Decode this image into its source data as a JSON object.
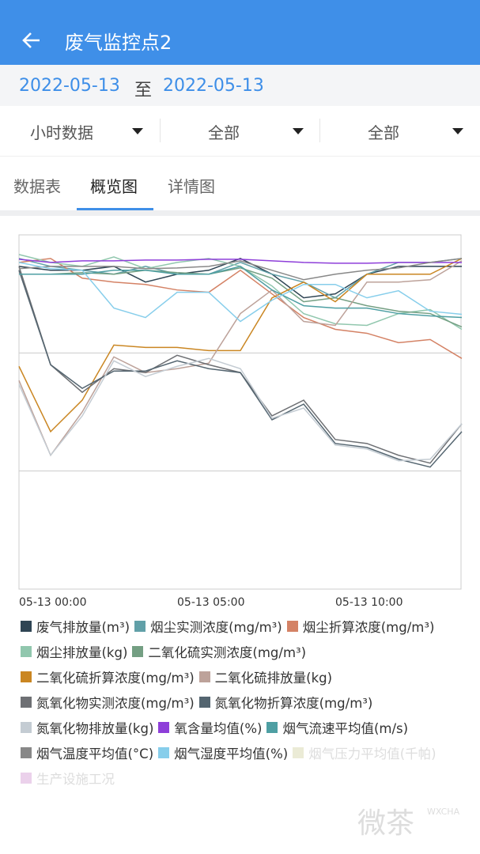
{
  "header": {
    "title": "废气监控点2"
  },
  "date_range": {
    "start": "2022-05-13",
    "separator": "至",
    "end": "2022-05-13"
  },
  "filters": [
    "小时数据",
    "全部",
    "全部"
  ],
  "tabs": [
    "数据表",
    "概览图",
    "详情图"
  ],
  "active_tab": 1,
  "watermark": {
    "text": "微茶",
    "sub": "WXCHA"
  },
  "chart_data": {
    "type": "line",
    "categories": [
      "05-13 00:00",
      null,
      null,
      null,
      null,
      "05-13 05:00",
      null,
      null,
      null,
      null,
      "05-13 10:00",
      null,
      null,
      null,
      null
    ],
    "ylim": [
      0,
      450
    ],
    "yticks": [
      150,
      300
    ],
    "grid": true,
    "series": [
      {
        "name": "废气排放量(m³)",
        "color": "#2f4554",
        "values": [
          410,
          405,
          405,
          410,
          390,
          400,
          405,
          420,
          400,
          370,
          375,
          400,
          410,
          410,
          410
        ]
      },
      {
        "name": "烟尘实测浓度(mg/m³)",
        "color": "#61a0a8",
        "values": [
          420,
          410,
          405,
          400,
          410,
          400,
          400,
          415,
          400,
          390,
          370,
          400,
          415,
          415,
          420
        ]
      },
      {
        "name": "烟尘折算浓度(mg/m³)",
        "color": "#d48265",
        "values": [
          415,
          420,
          395,
          390,
          387,
          380,
          377,
          405,
          375,
          345,
          330,
          325,
          313,
          317,
          293
        ]
      },
      {
        "name": "烟尘排放量(kg)",
        "color": "#91c7ae",
        "values": [
          425,
          415,
          410,
          422,
          407,
          415,
          420,
          410,
          385,
          350,
          337,
          335,
          350,
          355,
          330
        ]
      },
      {
        "name": "二氧化硫实测浓度(mg/m³)",
        "color": "#749f83",
        "values": [
          400,
          400,
          402,
          400,
          405,
          402,
          400,
          408,
          395,
          365,
          370,
          360,
          353,
          350,
          333
        ]
      },
      {
        "name": "二氧化硫折算浓度(mg/m³)",
        "color": "#ca8622",
        "values": [
          283,
          200,
          240,
          310,
          307,
          307,
          303,
          303,
          370,
          390,
          365,
          400,
          400,
          400,
          420
        ]
      },
      {
        "name": "二氧化硫排放量(kg)",
        "color": "#bda29a",
        "values": [
          265,
          170,
          225,
          295,
          275,
          280,
          287,
          350,
          380,
          340,
          335,
          390,
          390,
          393,
          417
        ]
      },
      {
        "name": "氮氧化物实测浓度(mg/m³)",
        "color": "#6e7074",
        "values": [
          410,
          285,
          250,
          280,
          275,
          297,
          285,
          275,
          220,
          240,
          190,
          185,
          170,
          160,
          210
        ]
      },
      {
        "name": "氮氧化物折算浓度(mg/m³)",
        "color": "#546570",
        "values": [
          405,
          285,
          255,
          277,
          277,
          290,
          280,
          275,
          215,
          235,
          185,
          180,
          165,
          155,
          200
        ]
      },
      {
        "name": "氮氧化物排放量(kg)",
        "color": "#c4ccd3",
        "values": [
          260,
          170,
          220,
          290,
          270,
          283,
          293,
          280,
          217,
          230,
          183,
          178,
          163,
          165,
          210
        ]
      },
      {
        "name": "氧含量均值(%)",
        "color": "#8e3fd9",
        "values": [
          419,
          415,
          417,
          417,
          418,
          418,
          419,
          419,
          417,
          415,
          414,
          414,
          415,
          415,
          415
        ]
      },
      {
        "name": "烟气流速平均值(m/s)",
        "color": "#4e9fa3",
        "values": [
          400,
          400,
          400,
          405,
          405,
          400,
          400,
          410,
          380,
          360,
          357,
          357,
          350,
          347,
          345
        ]
      },
      {
        "name": "烟气温度平均值(°C)",
        "color": "#888888",
        "values": [
          407,
          410,
          410,
          410,
          407,
          408,
          410,
          417,
          405,
          393,
          400,
          405,
          408,
          415,
          420
        ]
      },
      {
        "name": "烟气湿度平均值(%)",
        "color": "#87ceeb",
        "values": [
          415,
          407,
          405,
          357,
          345,
          377,
          377,
          340,
          367,
          387,
          387,
          370,
          379,
          353,
          349
        ]
      },
      {
        "name": "烟气压力平均值(千帕)",
        "color": "#e6e6cc",
        "visible": false,
        "values": [
          null,
          null,
          null,
          null,
          null,
          null,
          null,
          null,
          null,
          null,
          null,
          null,
          null,
          null,
          null
        ]
      },
      {
        "name": "生产设施工况",
        "color": "#e6c6e6",
        "visible": false,
        "values": [
          null,
          null,
          null,
          null,
          null,
          null,
          null,
          null,
          null,
          null,
          null,
          null,
          null,
          null,
          null
        ]
      }
    ]
  }
}
